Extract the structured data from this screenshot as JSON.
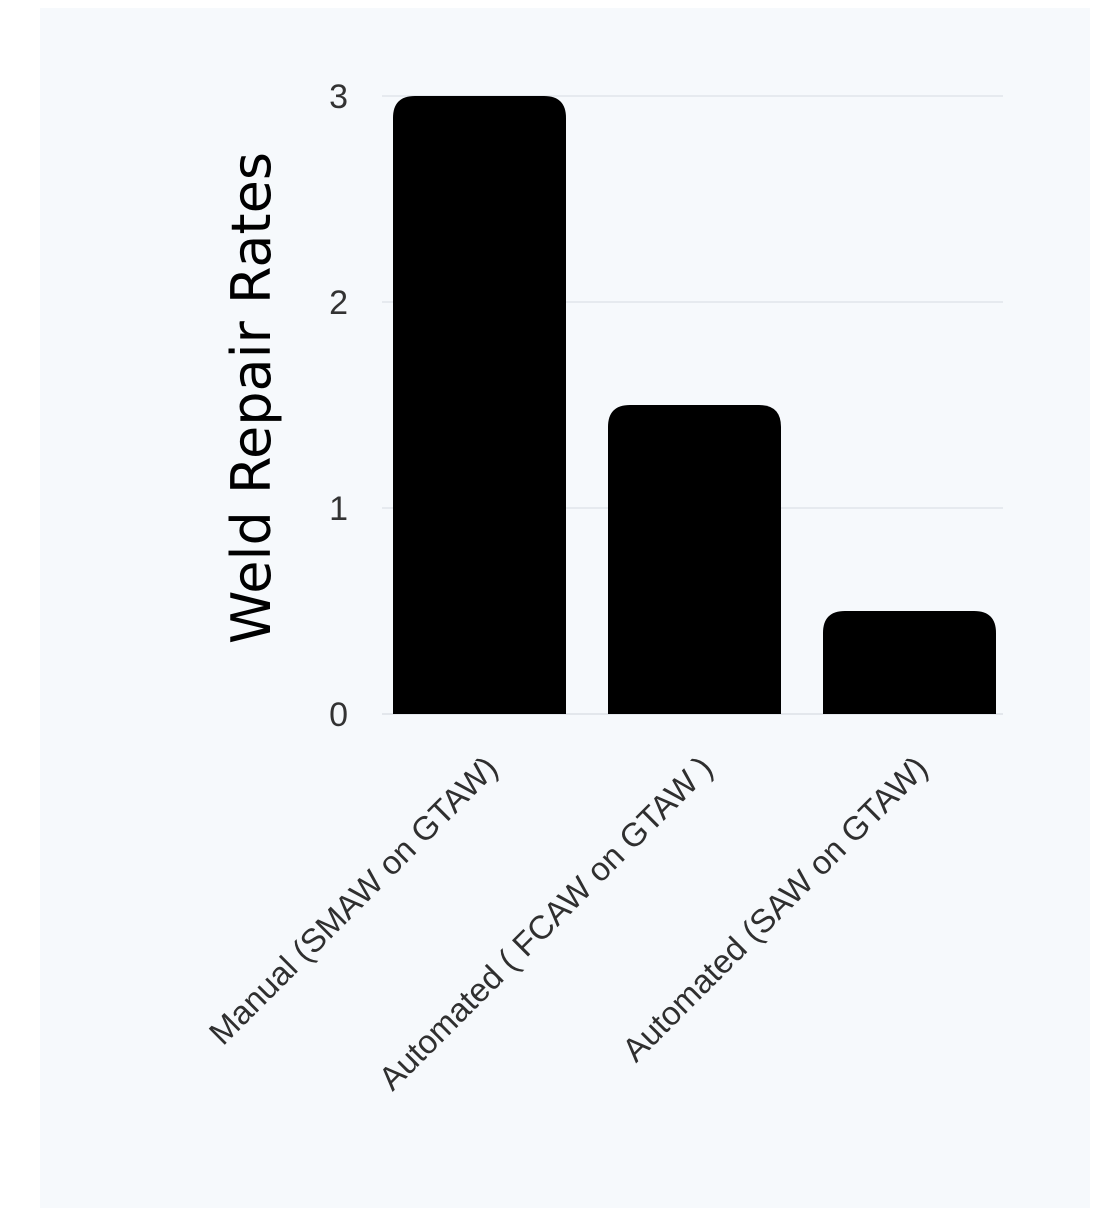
{
  "chart_data": {
    "type": "bar",
    "categories": [
      "Manual (SMAW on GTAW)",
      "Automated ( FCAW on GTAW )",
      "Automated (SAW on GTAW)"
    ],
    "values": [
      3,
      1.5,
      0.5
    ],
    "ylabel": "Weld Repair Rates",
    "ylim": [
      0,
      3
    ],
    "yticks": [
      "0",
      "1",
      "2",
      "3"
    ],
    "grid": true,
    "legend": "none",
    "bar_color": "#000000",
    "background_color": "#f6f9fc",
    "gridline_color": "#e6eaef"
  }
}
